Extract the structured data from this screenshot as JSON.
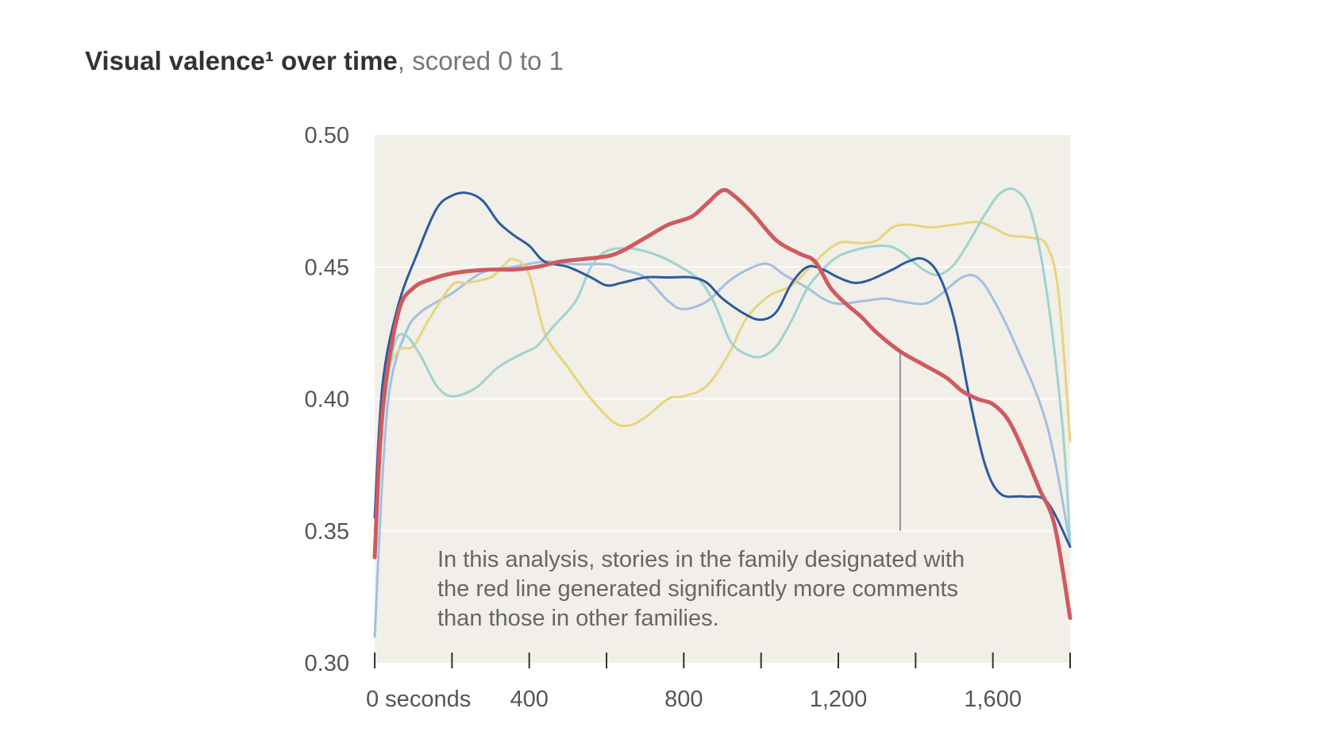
{
  "title": {
    "bold": "Visual valence¹ over time",
    "rest": ", scored 0 to 1"
  },
  "colors": {
    "plot_bg": "#f1efe8",
    "grid": "#ffffff",
    "axis": "#333333",
    "annotation_line": "#555555"
  },
  "annotation": {
    "lines": [
      "In this analysis, stories in the family designated with",
      "the red line generated significantly more comments",
      "than those in other families."
    ],
    "pointer_x": 1360,
    "pointer_y_top": 0.418,
    "pointer_y_bottom": 0.35
  },
  "chart_data": {
    "type": "line",
    "xlim": [
      0,
      1800
    ],
    "ylim": [
      0.3,
      0.5
    ],
    "y_ticks": [
      {
        "value": 0.5,
        "label": "0.50"
      },
      {
        "value": 0.45,
        "label": "0.45"
      },
      {
        "value": 0.4,
        "label": "0.40"
      },
      {
        "value": 0.35,
        "label": "0.35"
      },
      {
        "value": 0.3,
        "label": "0.30"
      }
    ],
    "x_tick_marks": [
      0,
      200,
      400,
      600,
      800,
      1000,
      1200,
      1400,
      1600,
      1800
    ],
    "x_tick_labels": [
      {
        "value": 0,
        "label": "0 seconds"
      },
      {
        "value": 400,
        "label": "400"
      },
      {
        "value": 800,
        "label": "800"
      },
      {
        "value": 1200,
        "label": "1,200"
      },
      {
        "value": 1600,
        "label": "1,600"
      }
    ],
    "grid": "horizontal",
    "series": [
      {
        "color": "#a3bfe0",
        "width": 3,
        "points": [
          [
            0,
            0.31
          ],
          [
            20,
            0.37
          ],
          [
            40,
            0.405
          ],
          [
            80,
            0.425
          ],
          [
            120,
            0.433
          ],
          [
            200,
            0.44
          ],
          [
            280,
            0.448
          ],
          [
            360,
            0.45
          ],
          [
            440,
            0.452
          ],
          [
            520,
            0.451
          ],
          [
            600,
            0.451
          ],
          [
            640,
            0.449
          ],
          [
            700,
            0.446
          ],
          [
            760,
            0.437
          ],
          [
            800,
            0.434
          ],
          [
            860,
            0.437
          ],
          [
            920,
            0.445
          ],
          [
            980,
            0.45
          ],
          [
            1020,
            0.451
          ],
          [
            1060,
            0.447
          ],
          [
            1120,
            0.442
          ],
          [
            1160,
            0.438
          ],
          [
            1200,
            0.436
          ],
          [
            1260,
            0.437
          ],
          [
            1320,
            0.438
          ],
          [
            1360,
            0.437
          ],
          [
            1420,
            0.436
          ],
          [
            1460,
            0.439
          ],
          [
            1520,
            0.446
          ],
          [
            1560,
            0.446
          ],
          [
            1600,
            0.438
          ],
          [
            1660,
            0.42
          ],
          [
            1740,
            0.39
          ],
          [
            1800,
            0.345
          ]
        ]
      },
      {
        "color": "#e7d57a",
        "width": 3,
        "points": [
          [
            0,
            0.35
          ],
          [
            30,
            0.405
          ],
          [
            60,
            0.418
          ],
          [
            100,
            0.42
          ],
          [
            140,
            0.43
          ],
          [
            200,
            0.443
          ],
          [
            240,
            0.444
          ],
          [
            300,
            0.446
          ],
          [
            330,
            0.45
          ],
          [
            360,
            0.453
          ],
          [
            400,
            0.447
          ],
          [
            440,
            0.425
          ],
          [
            500,
            0.412
          ],
          [
            560,
            0.4
          ],
          [
            620,
            0.391
          ],
          [
            660,
            0.39
          ],
          [
            700,
            0.393
          ],
          [
            760,
            0.4
          ],
          [
            800,
            0.401
          ],
          [
            860,
            0.405
          ],
          [
            920,
            0.418
          ],
          [
            960,
            0.43
          ],
          [
            1020,
            0.439
          ],
          [
            1080,
            0.443
          ],
          [
            1140,
            0.452
          ],
          [
            1200,
            0.459
          ],
          [
            1260,
            0.459
          ],
          [
            1300,
            0.46
          ],
          [
            1340,
            0.465
          ],
          [
            1380,
            0.466
          ],
          [
            1440,
            0.465
          ],
          [
            1500,
            0.466
          ],
          [
            1560,
            0.467
          ],
          [
            1600,
            0.465
          ],
          [
            1640,
            0.462
          ],
          [
            1700,
            0.461
          ],
          [
            1740,
            0.458
          ],
          [
            1770,
            0.44
          ],
          [
            1800,
            0.384
          ]
        ]
      },
      {
        "color": "#9dd3cf",
        "width": 3,
        "points": [
          [
            0,
            0.34
          ],
          [
            20,
            0.39
          ],
          [
            50,
            0.42
          ],
          [
            80,
            0.424
          ],
          [
            120,
            0.416
          ],
          [
            160,
            0.405
          ],
          [
            200,
            0.401
          ],
          [
            260,
            0.404
          ],
          [
            320,
            0.412
          ],
          [
            380,
            0.417
          ],
          [
            420,
            0.42
          ],
          [
            460,
            0.427
          ],
          [
            520,
            0.437
          ],
          [
            560,
            0.45
          ],
          [
            600,
            0.456
          ],
          [
            660,
            0.457
          ],
          [
            720,
            0.455
          ],
          [
            780,
            0.451
          ],
          [
            840,
            0.445
          ],
          [
            880,
            0.436
          ],
          [
            920,
            0.422
          ],
          [
            960,
            0.417
          ],
          [
            1000,
            0.416
          ],
          [
            1040,
            0.42
          ],
          [
            1080,
            0.43
          ],
          [
            1120,
            0.442
          ],
          [
            1160,
            0.449
          ],
          [
            1200,
            0.454
          ],
          [
            1260,
            0.457
          ],
          [
            1320,
            0.458
          ],
          [
            1360,
            0.456
          ],
          [
            1420,
            0.449
          ],
          [
            1460,
            0.447
          ],
          [
            1500,
            0.451
          ],
          [
            1540,
            0.46
          ],
          [
            1580,
            0.47
          ],
          [
            1620,
            0.478
          ],
          [
            1660,
            0.479
          ],
          [
            1700,
            0.47
          ],
          [
            1740,
            0.44
          ],
          [
            1780,
            0.39
          ],
          [
            1800,
            0.346
          ]
        ]
      },
      {
        "color": "#2d5aa0",
        "width": 3,
        "points": [
          [
            0,
            0.355
          ],
          [
            20,
            0.405
          ],
          [
            60,
            0.435
          ],
          [
            110,
            0.455
          ],
          [
            160,
            0.472
          ],
          [
            200,
            0.477
          ],
          [
            240,
            0.478
          ],
          [
            280,
            0.475
          ],
          [
            320,
            0.467
          ],
          [
            360,
            0.462
          ],
          [
            400,
            0.458
          ],
          [
            440,
            0.452
          ],
          [
            500,
            0.45
          ],
          [
            560,
            0.446
          ],
          [
            600,
            0.443
          ],
          [
            640,
            0.444
          ],
          [
            700,
            0.446
          ],
          [
            760,
            0.446
          ],
          [
            820,
            0.446
          ],
          [
            860,
            0.444
          ],
          [
            900,
            0.438
          ],
          [
            960,
            0.432
          ],
          [
            1000,
            0.43
          ],
          [
            1040,
            0.433
          ],
          [
            1080,
            0.444
          ],
          [
            1120,
            0.45
          ],
          [
            1160,
            0.449
          ],
          [
            1200,
            0.446
          ],
          [
            1240,
            0.444
          ],
          [
            1280,
            0.445
          ],
          [
            1340,
            0.449
          ],
          [
            1380,
            0.452
          ],
          [
            1420,
            0.453
          ],
          [
            1460,
            0.447
          ],
          [
            1500,
            0.43
          ],
          [
            1540,
            0.4
          ],
          [
            1580,
            0.375
          ],
          [
            1620,
            0.364
          ],
          [
            1680,
            0.363
          ],
          [
            1740,
            0.361
          ],
          [
            1800,
            0.344
          ]
        ]
      },
      {
        "color": "#cf5a5f",
        "width": 5,
        "points": [
          [
            0,
            0.34
          ],
          [
            20,
            0.395
          ],
          [
            60,
            0.432
          ],
          [
            100,
            0.442
          ],
          [
            160,
            0.446
          ],
          [
            220,
            0.448
          ],
          [
            300,
            0.449
          ],
          [
            360,
            0.449
          ],
          [
            420,
            0.45
          ],
          [
            480,
            0.452
          ],
          [
            540,
            0.453
          ],
          [
            600,
            0.454
          ],
          [
            640,
            0.456
          ],
          [
            700,
            0.461
          ],
          [
            760,
            0.466
          ],
          [
            820,
            0.469
          ],
          [
            860,
            0.474
          ],
          [
            900,
            0.479
          ],
          [
            930,
            0.477
          ],
          [
            980,
            0.47
          ],
          [
            1040,
            0.46
          ],
          [
            1100,
            0.455
          ],
          [
            1140,
            0.452
          ],
          [
            1180,
            0.442
          ],
          [
            1220,
            0.436
          ],
          [
            1260,
            0.431
          ],
          [
            1300,
            0.425
          ],
          [
            1360,
            0.418
          ],
          [
            1420,
            0.413
          ],
          [
            1480,
            0.408
          ],
          [
            1520,
            0.403
          ],
          [
            1560,
            0.4
          ],
          [
            1600,
            0.398
          ],
          [
            1640,
            0.392
          ],
          [
            1680,
            0.38
          ],
          [
            1720,
            0.366
          ],
          [
            1760,
            0.352
          ],
          [
            1800,
            0.317
          ]
        ]
      }
    ]
  }
}
